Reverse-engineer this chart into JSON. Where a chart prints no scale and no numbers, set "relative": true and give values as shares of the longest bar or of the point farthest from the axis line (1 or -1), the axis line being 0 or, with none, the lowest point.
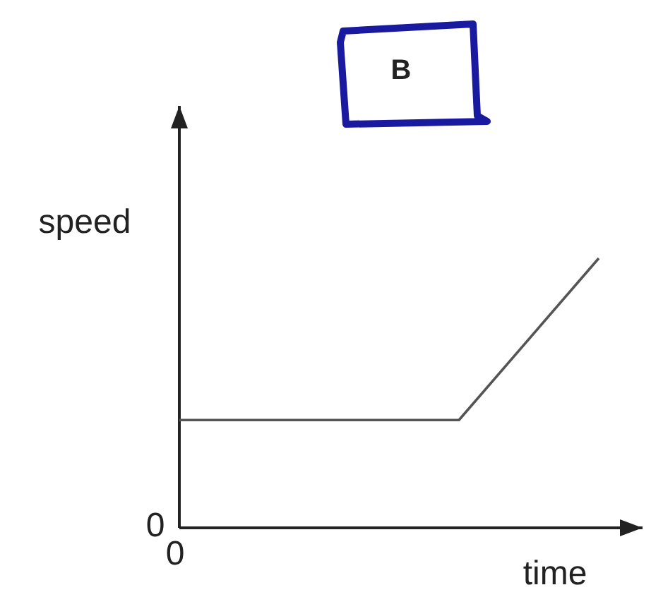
{
  "chart_data": {
    "type": "line",
    "title": "B",
    "xlabel": "time",
    "ylabel": "speed",
    "relative": true,
    "categories": [
      null,
      null,
      null,
      null
    ],
    "series": [
      {
        "color": "#555555",
        "values": [
          0.4,
          0.4,
          0.4,
          1
        ]
      }
    ],
    "annotations": [
      "0",
      "0"
    ],
    "marker": "none",
    "line_style": "solid"
  }
}
